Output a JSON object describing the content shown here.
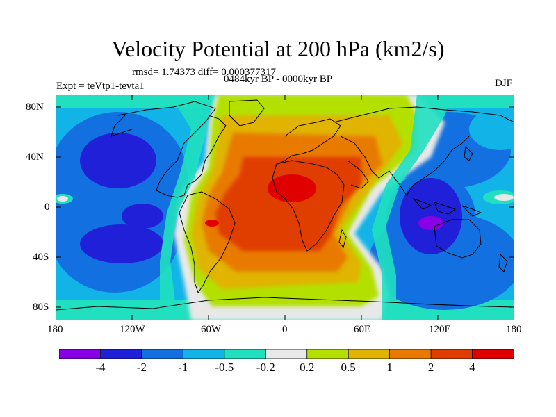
{
  "title": "Velocity Potential at 200 hPa (km2/s)",
  "stats": "rmsd= 1.74373 diff= 0.000377317",
  "left_label": "Expt = teVtp1-tevta1",
  "center_label": "0484kyr BP - 0000kyr BP",
  "season": "DJF",
  "map": {
    "projection": "cylindrical-equidistant",
    "lon_range": [
      -180,
      180
    ],
    "lat_range": [
      -90,
      90
    ],
    "y_ticks": [
      "80N",
      "40N",
      "0",
      "40S",
      "80S"
    ],
    "x_ticks": [
      "180",
      "120W",
      "60W",
      "0",
      "60E",
      "120E",
      "180"
    ],
    "field_pattern": "positive anomaly (ascent) over Africa/Atlantic/South America; negative anomalies over Pacific and Maritime Continent/Indian Ocean"
  },
  "colorbar": {
    "colors": [
      "#8a00e6",
      "#2020d8",
      "#1270e0",
      "#12b4e8",
      "#20e0c0",
      "#e8e8e8",
      "#b4e000",
      "#e0b400",
      "#e87a00",
      "#e03c00",
      "#e00000"
    ],
    "labels": [
      "-4",
      "-2",
      "-1",
      "-0.5",
      "-0.2",
      "0.2",
      "0.5",
      "1",
      "2",
      "4"
    ]
  }
}
